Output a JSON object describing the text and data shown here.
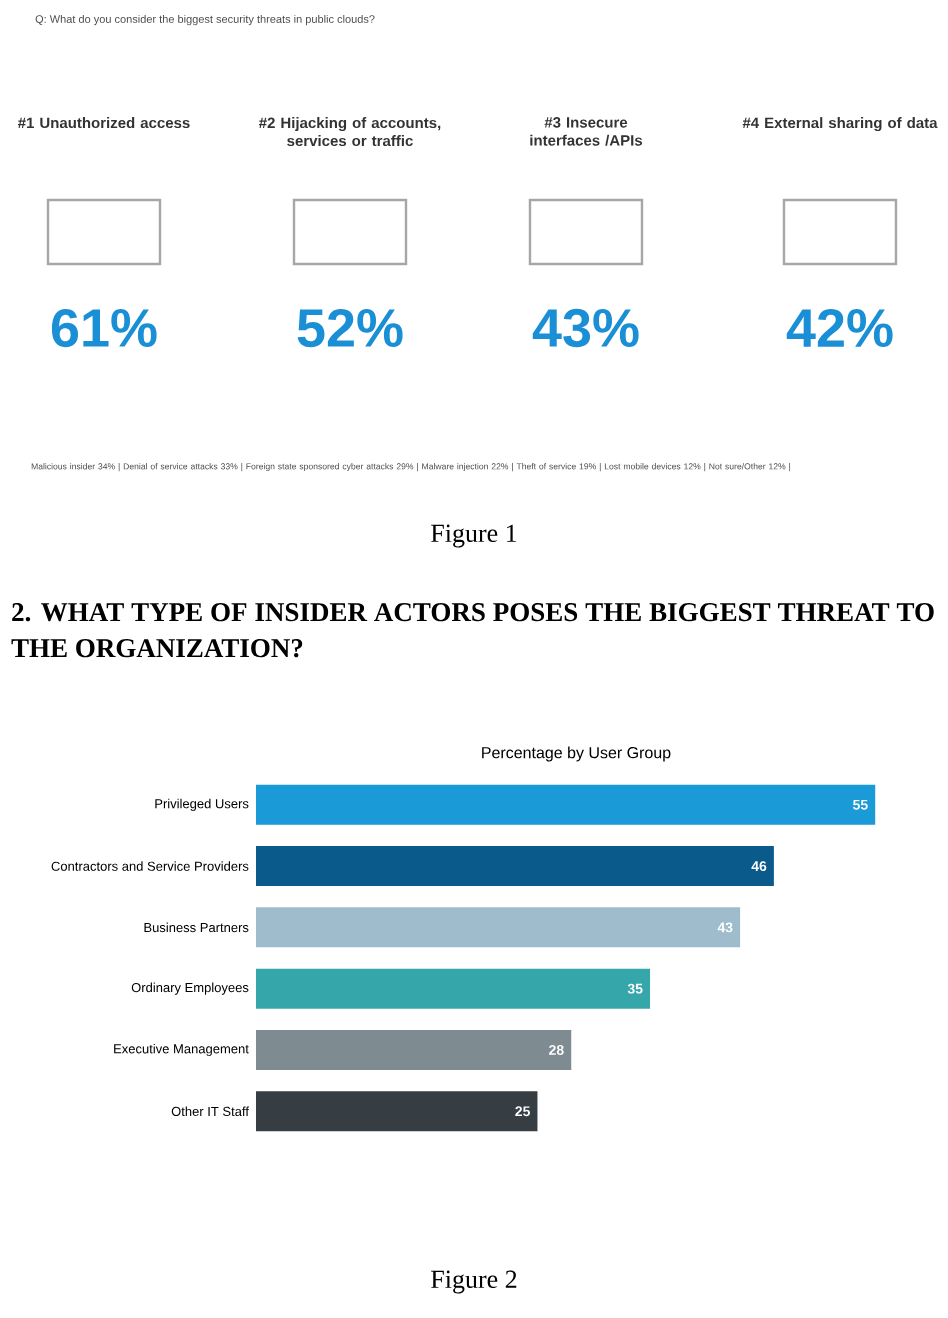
{
  "chart_data": [
    {
      "type": "other",
      "title": "Q: What do you consider the biggest security threats in public clouds?",
      "categories": [
        "#1 Unauthorized access",
        "#2 Hijacking of accounts, services or traffic",
        "#3 Insecure interfaces /APIs",
        "#4 External sharing of data"
      ],
      "values": [
        61,
        52,
        43,
        42
      ],
      "value_labels": [
        "61%",
        "52%",
        "43%",
        "42%"
      ],
      "color": "#1a8fd6",
      "annotations": [
        "Malicious insider 34% | Denial of service attacks 33% | Foreign state sponsored cyber attacks 29% | Malware injection 22% | Theft of service 19% | Lost mobile devices 12% | Not sure/Other 12% |",
        "Figure 1"
      ]
    },
    {
      "type": "bar",
      "orientation": "horizontal",
      "title": "Percentage by User Group",
      "categories": [
        "Privileged Users",
        "Contractors and Service Providers",
        "Business Partners",
        "Ordinary Employees",
        "Executive Management",
        "Other IT Staff"
      ],
      "values": [
        55,
        46,
        43,
        35,
        28,
        25
      ],
      "colors": [
        "#1a9ad6",
        "#0a5a8c",
        "#9fbccd",
        "#35a7aa",
        "#7e8b91",
        "#363d43"
      ],
      "data_labels": true,
      "annotations": [
        "2. WHAT TYPE OF INSIDER ACTORS POSES THE BIGGEST THREAT TO THE ORGANIZATION?",
        "Figure 2"
      ]
    }
  ]
}
